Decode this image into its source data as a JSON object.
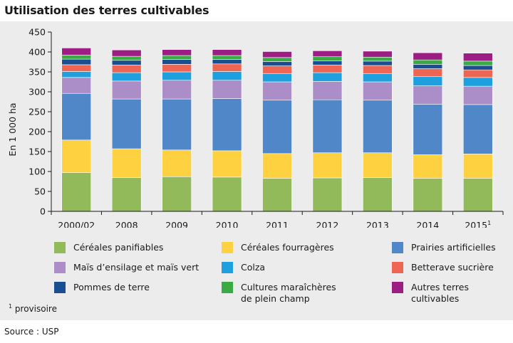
{
  "title": "Utilisation des terres cultivables",
  "footnote": {
    "marker": "1",
    "text": "provisoire"
  },
  "source": "Source : USP",
  "chart_data": {
    "type": "bar",
    "stacked": true,
    "title": "Utilisation des terres cultivables",
    "xlabel": "",
    "ylabel": "En 1 000 ha",
    "ylim": [
      0,
      450
    ],
    "yticks": [
      0,
      50,
      100,
      150,
      200,
      250,
      300,
      350,
      400,
      450
    ],
    "grid": false,
    "legend_position": "bottom",
    "categories": [
      "2000/02",
      "2008",
      "2009",
      "2010",
      "2011",
      "2012",
      "2013",
      "2014",
      "2015"
    ],
    "category_superscripts": [
      "",
      "",
      "",
      "",
      "",
      "",
      "",
      "",
      "1"
    ],
    "series": [
      {
        "name": "Céréales panifiables",
        "color": "#92b95a",
        "values": [
          97,
          85,
          87,
          86,
          83,
          84,
          85,
          83,
          83
        ]
      },
      {
        "name": "Céréales fourragères",
        "color": "#fdd140",
        "values": [
          82,
          72,
          67,
          66,
          62,
          63,
          62,
          59,
          61
        ]
      },
      {
        "name": "Prairies artificielles",
        "color": "#4f87c9",
        "values": [
          117,
          125,
          128,
          131,
          134,
          133,
          132,
          127,
          124
        ]
      },
      {
        "name": "Maïs d’ensilage et maïs vert",
        "color": "#ab8dc7",
        "values": [
          40,
          45,
          47,
          46,
          46,
          46,
          46,
          46,
          46
        ]
      },
      {
        "name": "Colza",
        "color": "#1fa0de",
        "values": [
          15,
          21,
          21,
          22,
          21,
          22,
          21,
          23,
          22
        ]
      },
      {
        "name": "Betterave sucrière",
        "color": "#ee6553",
        "values": [
          17,
          19,
          19,
          19,
          19,
          19,
          20,
          20,
          19
        ]
      },
      {
        "name": "Pommes de terre",
        "color": "#1a4e91",
        "values": [
          14,
          12,
          12,
          11,
          11,
          11,
          11,
          11,
          11
        ]
      },
      {
        "name": "Cultures maraîchères de plein champ",
        "color": "#3baa45",
        "values": [
          10,
          10,
          10,
          10,
          10,
          10,
          10,
          11,
          11
        ]
      },
      {
        "name": "Autres terres cultivables",
        "color": "#9c1e85",
        "values": [
          18,
          16,
          15,
          15,
          15,
          15,
          15,
          18,
          20
        ]
      }
    ]
  }
}
